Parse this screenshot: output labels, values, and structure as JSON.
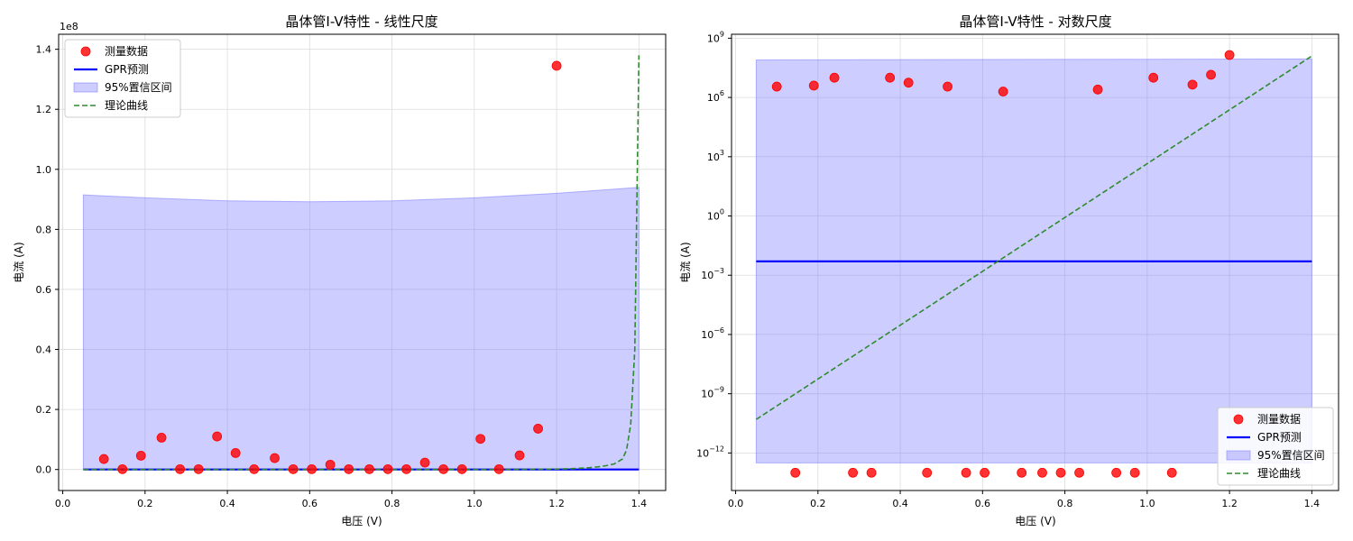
{
  "chart_data": [
    {
      "type": "scatter",
      "title": "晶体管I-V特性 - 线性尺度",
      "xlabel": "电压 (V)",
      "ylabel": "电流 (A)",
      "offset_label": "1e8",
      "scale": "linear",
      "xlim": [
        -0.01,
        1.465
      ],
      "ylim": [
        -0.07,
        1.45
      ],
      "x_ticks": [
        0.0,
        0.2,
        0.4,
        0.6,
        0.8,
        1.0,
        1.2,
        1.4
      ],
      "x_tick_labels": [
        "0.0",
        "0.2",
        "0.4",
        "0.6",
        "0.8",
        "1.0",
        "1.2",
        "1.4"
      ],
      "y_ticks": [
        0.0,
        0.2,
        0.4,
        0.6,
        0.8,
        1.0,
        1.2,
        1.4
      ],
      "y_tick_labels": [
        "0.0",
        "0.2",
        "0.4",
        "0.6",
        "0.8",
        "1.0",
        "1.2",
        "1.4"
      ],
      "grid": true,
      "legend_position": "top-left",
      "legend": [
        "测量数据",
        "GPR预测",
        "95%置信区间",
        "理论曲线"
      ],
      "colors": {
        "measured": "#ff0000",
        "gpr": "#0000ff",
        "ci": "#7b7bff",
        "theory": "#2e8b2e"
      },
      "measured": {
        "x": [
          0.1,
          0.145,
          0.19,
          0.24,
          0.285,
          0.33,
          0.375,
          0.42,
          0.465,
          0.515,
          0.56,
          0.605,
          0.65,
          0.695,
          0.745,
          0.79,
          0.835,
          0.88,
          0.925,
          0.97,
          1.015,
          1.06,
          1.11,
          1.155,
          1.2
        ],
        "y": [
          0.035,
          0.001,
          0.046,
          0.106,
          0.001,
          0.001,
          0.11,
          0.055,
          0.001,
          0.038,
          0.001,
          0.001,
          0.016,
          0.001,
          0.001,
          0.001,
          0.001,
          0.023,
          0.001,
          0.001,
          0.102,
          0.001,
          0.047,
          0.136,
          1.345
        ]
      },
      "gpr": {
        "x": [
          0.05,
          1.4
        ],
        "y": [
          0.0,
          0.0
        ]
      },
      "ci": {
        "x": [
          0.05,
          0.2,
          0.4,
          0.6,
          0.8,
          1.0,
          1.2,
          1.4
        ],
        "upper": [
          0.915,
          0.905,
          0.895,
          0.892,
          0.895,
          0.905,
          0.92,
          0.94
        ],
        "lower": [
          0.0,
          0.0,
          0.0,
          0.0,
          0.0,
          0.0,
          0.0,
          0.0
        ]
      },
      "theory": {
        "x": [
          0.05,
          1.0,
          1.1,
          1.2,
          1.25,
          1.28,
          1.3,
          1.32,
          1.34,
          1.36,
          1.37,
          1.38,
          1.39,
          1.4
        ],
        "y": [
          0.0,
          0.0,
          0.0003,
          0.0014,
          0.0034,
          0.006,
          0.0087,
          0.0126,
          0.0185,
          0.035,
          0.065,
          0.15,
          0.4,
          1.38
        ]
      }
    },
    {
      "type": "scatter",
      "title": "晶体管I-V特性 - 对数尺度",
      "xlabel": "电压 (V)",
      "ylabel": "电流 (A)",
      "scale": "log",
      "xlim": [
        -0.01,
        1.465
      ],
      "ylim": [
        -13.9,
        9.2
      ],
      "x_ticks": [
        0.0,
        0.2,
        0.4,
        0.6,
        0.8,
        1.0,
        1.2,
        1.4
      ],
      "x_tick_labels": [
        "0.0",
        "0.2",
        "0.4",
        "0.6",
        "0.8",
        "1.0",
        "1.2",
        "1.4"
      ],
      "y_ticks": [
        9,
        6,
        3,
        0,
        -3,
        -6,
        -9,
        -12
      ],
      "y_tick_labels": [
        "10^9",
        "10^6",
        "10^3",
        "10^0",
        "10^−3",
        "10^−6",
        "10^−9",
        "10^−12"
      ],
      "grid": true,
      "legend_position": "bottom-right",
      "legend": [
        "测量数据",
        "GPR预测",
        "95%置信区间",
        "理论曲线"
      ],
      "colors": {
        "measured": "#ff0000",
        "gpr": "#0000ff",
        "ci": "#7b7bff",
        "theory": "#2e8b2e"
      },
      "measured": {
        "x": [
          0.1,
          0.19,
          0.24,
          0.375,
          0.42,
          0.515,
          0.65,
          0.88,
          1.015,
          1.11,
          1.155,
          1.2,
          0.145,
          0.285,
          0.33,
          0.465,
          0.56,
          0.605,
          0.695,
          0.745,
          0.79,
          0.835,
          0.925,
          0.97,
          1.06
        ],
        "log10_y": [
          6.55,
          6.6,
          7.0,
          7.0,
          6.75,
          6.55,
          6.3,
          6.4,
          7.0,
          6.65,
          7.15,
          8.15,
          -13.0,
          -13.0,
          -13.0,
          -13.0,
          -13.0,
          -13.0,
          -13.0,
          -13.0,
          -13.0,
          -13.0,
          -13.0,
          -13.0,
          -13.0
        ]
      },
      "gpr": {
        "x": [
          0.05,
          1.4
        ],
        "log10_y": [
          -2.3,
          -2.3
        ]
      },
      "ci": {
        "x": [
          0.05,
          1.4
        ],
        "log10_upper": [
          7.9,
          7.95
        ],
        "log10_lower": [
          -12.5,
          -12.5
        ]
      },
      "theory": {
        "x": [
          0.05,
          1.4
        ],
        "log10_y": [
          -10.3,
          8.1
        ]
      }
    }
  ]
}
